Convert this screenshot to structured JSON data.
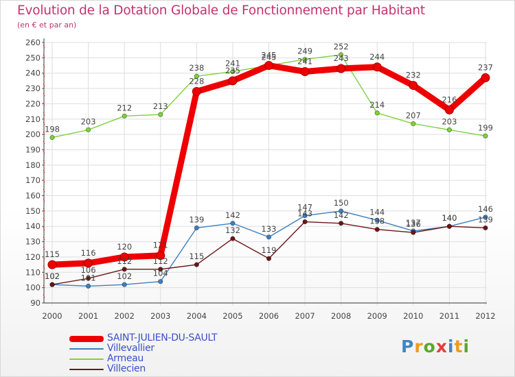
{
  "header": {
    "title": "Evolution de la Dotation Globale de Fonctionnement par Habitant",
    "subtitle": "(en € et par an)"
  },
  "logo": {
    "text": "Proxiti",
    "colors": [
      "#3f86c8",
      "#ef9a1e",
      "#5aa82c",
      "#e23f3a",
      "#3f86c8",
      "#ef9a1e",
      "#5aa82c"
    ]
  },
  "chart_data": {
    "type": "line",
    "title": "Evolution de la Dotation Globale de Fonctionnement par Habitant",
    "subtitle": "(en € et par an)",
    "xlabel": "",
    "ylabel": "",
    "x": [
      "2000",
      "2001",
      "2002",
      "2003",
      "2004",
      "2005",
      "2006",
      "2007",
      "2008",
      "2009",
      "2010",
      "2011",
      "2012"
    ],
    "ylim": [
      90,
      260
    ],
    "yticks": [
      90,
      100,
      110,
      120,
      130,
      140,
      150,
      160,
      170,
      180,
      190,
      200,
      210,
      220,
      230,
      240,
      250,
      260
    ],
    "grid": true,
    "legend_position": "bottom-left",
    "series": [
      {
        "name": "SAINT-JULIEN-DU-SAULT",
        "color": "#ee0000",
        "bold": true,
        "values": [
          115,
          116,
          120,
          121,
          228,
          235,
          245,
          241,
          243,
          244,
          232,
          216,
          237
        ]
      },
      {
        "name": "Villevallier",
        "color": "#3d7fc0",
        "values": [
          102,
          101,
          102,
          104,
          139,
          142,
          133,
          147,
          150,
          144,
          137,
          140,
          146
        ]
      },
      {
        "name": "Armeau",
        "color": "#7ed13b",
        "values": [
          198,
          203,
          212,
          213,
          238,
          241,
          245,
          249,
          252,
          214,
          207,
          203,
          199
        ]
      },
      {
        "name": "Villecien",
        "color": "#6b1517",
        "values": [
          102,
          106,
          112,
          112,
          115,
          132,
          119,
          143,
          142,
          138,
          136,
          140,
          139
        ]
      }
    ]
  }
}
